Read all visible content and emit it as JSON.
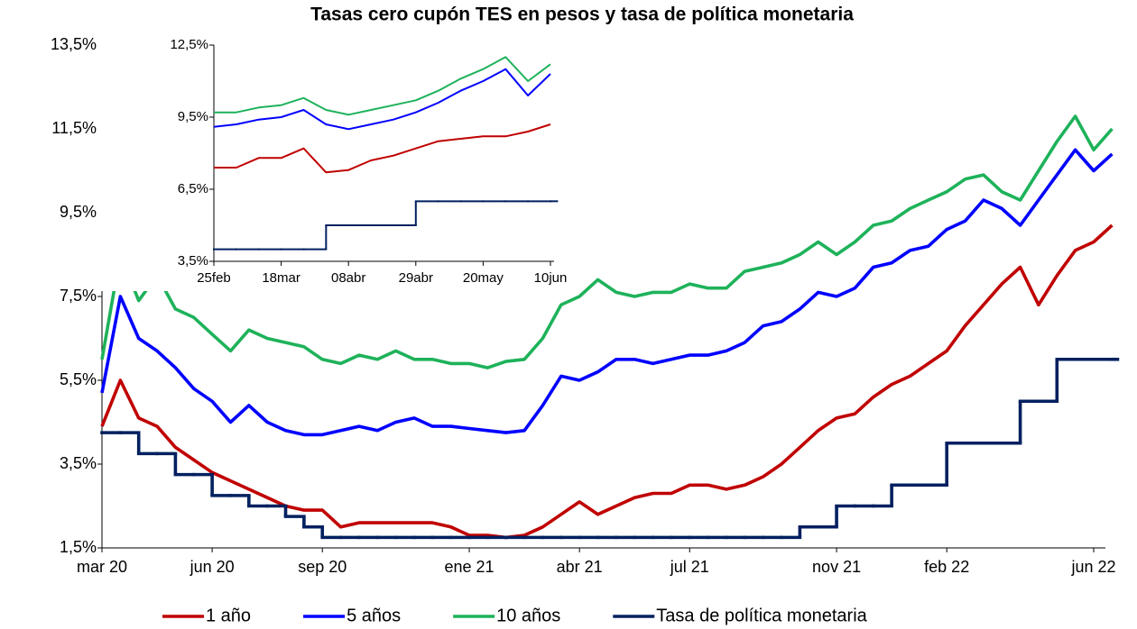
{
  "chart_data": [
    {
      "type": "line",
      "title": "Tasas cero cupón TES en pesos y tasa de política monetaria",
      "categories": [
        "mar 20",
        null,
        null,
        null,
        null,
        null,
        "jun 20",
        null,
        null,
        null,
        null,
        null,
        "sep 20",
        null,
        null,
        null,
        null,
        null,
        null,
        null,
        "ene 21",
        null,
        null,
        null,
        null,
        null,
        "abr 21",
        null,
        null,
        null,
        null,
        null,
        "jul 21",
        null,
        null,
        null,
        null,
        null,
        null,
        null,
        "nov 21",
        null,
        null,
        null,
        null,
        null,
        "feb 22",
        null,
        null,
        null,
        null,
        null,
        null,
        null,
        "jun 22",
        null
      ],
      "ylim": [
        1.5,
        13.5
      ],
      "yticks": [
        {
          "value": 1.5,
          "label": "1,5%"
        },
        {
          "value": 3.5,
          "label": "3,5%"
        },
        {
          "value": 5.5,
          "label": "5,5%"
        },
        {
          "value": 7.5,
          "label": "7,5%"
        },
        {
          "value": 9.5,
          "label": "9,5%"
        },
        {
          "value": 11.5,
          "label": "11,5%"
        },
        {
          "value": 13.5,
          "label": "13,5%"
        }
      ],
      "grid": false,
      "legend": "bottom",
      "series": [
        {
          "name": "1 año",
          "color": "#c00000",
          "values": [
            4.4,
            5.5,
            4.6,
            4.4,
            3.9,
            3.6,
            3.3,
            3.1,
            2.9,
            2.7,
            2.5,
            2.4,
            2.4,
            2.0,
            2.1,
            2.1,
            2.1,
            2.1,
            2.1,
            2.0,
            1.8,
            1.8,
            1.75,
            1.8,
            2.0,
            2.3,
            2.6,
            2.3,
            2.5,
            2.7,
            2.8,
            2.8,
            3.0,
            3.0,
            2.9,
            3.0,
            3.2,
            3.5,
            3.9,
            4.3,
            4.6,
            4.7,
            5.1,
            5.4,
            5.6,
            5.9,
            6.2,
            6.8,
            7.3,
            7.8,
            8.2,
            7.3,
            8.0,
            8.6,
            8.8,
            9.2
          ]
        },
        {
          "name": "5 años",
          "color": "#0000ff",
          "values": [
            5.2,
            7.5,
            6.5,
            6.2,
            5.8,
            5.3,
            5.0,
            4.5,
            4.9,
            4.5,
            4.3,
            4.2,
            4.2,
            4.3,
            4.4,
            4.3,
            4.5,
            4.6,
            4.4,
            4.4,
            4.35,
            4.3,
            4.25,
            4.3,
            4.9,
            5.6,
            5.5,
            5.7,
            6.0,
            6.0,
            5.9,
            6.0,
            6.1,
            6.1,
            6.2,
            6.4,
            6.8,
            6.9,
            7.2,
            7.6,
            7.5,
            7.7,
            8.2,
            8.3,
            8.6,
            8.7,
            9.1,
            9.3,
            9.8,
            9.6,
            9.2,
            9.8,
            10.4,
            11.0,
            10.5,
            10.9
          ]
        },
        {
          "name": "10 años",
          "color": "#1eb25a",
          "values": [
            6.0,
            8.5,
            7.4,
            8.0,
            7.2,
            7.0,
            6.6,
            6.2,
            6.7,
            6.5,
            6.4,
            6.3,
            6.0,
            5.9,
            6.1,
            6.0,
            6.2,
            6.0,
            6.0,
            5.9,
            5.9,
            5.8,
            5.95,
            6.0,
            6.5,
            7.3,
            7.5,
            7.9,
            7.6,
            7.5,
            7.6,
            7.6,
            7.8,
            7.7,
            7.7,
            8.1,
            8.2,
            8.3,
            8.5,
            8.8,
            8.5,
            8.8,
            9.2,
            9.3,
            9.6,
            9.8,
            10.0,
            10.3,
            10.4,
            10.0,
            9.8,
            10.5,
            11.2,
            11.8,
            11.0,
            11.5
          ]
        },
        {
          "name": "Tasa de política monetaria",
          "color": "#002060",
          "step": true,
          "values": [
            4.25,
            4.25,
            3.75,
            3.75,
            3.25,
            3.25,
            2.75,
            2.75,
            2.5,
            2.5,
            2.25,
            2.0,
            1.75,
            1.75,
            1.75,
            1.75,
            1.75,
            1.75,
            1.75,
            1.75,
            1.75,
            1.75,
            1.75,
            1.75,
            1.75,
            1.75,
            1.75,
            1.75,
            1.75,
            1.75,
            1.75,
            1.75,
            1.75,
            1.75,
            1.75,
            1.75,
            1.75,
            1.75,
            2.0,
            2.0,
            2.5,
            2.5,
            2.5,
            3.0,
            3.0,
            3.0,
            4.0,
            4.0,
            4.0,
            4.0,
            5.0,
            5.0,
            6.0,
            6.0,
            6.0,
            6.0
          ]
        }
      ]
    },
    {
      "type": "line",
      "categories": [
        "25feb",
        null,
        null,
        "18mar",
        null,
        null,
        "08abr",
        null,
        null,
        "29abr",
        null,
        null,
        "20may",
        null,
        null,
        "10jun"
      ],
      "ylim": [
        3.5,
        12.5
      ],
      "yticks": [
        {
          "value": 3.5,
          "label": "3,5%"
        },
        {
          "value": 6.5,
          "label": "6,5%"
        },
        {
          "value": 9.5,
          "label": "9,5%"
        },
        {
          "value": 12.5,
          "label": "12,5%"
        }
      ],
      "grid": false,
      "series": [
        {
          "color": "#c00000",
          "values": [
            7.4,
            7.4,
            7.8,
            7.8,
            8.2,
            7.2,
            7.3,
            7.7,
            7.9,
            8.2,
            8.5,
            8.6,
            8.7,
            8.7,
            8.9,
            9.2
          ]
        },
        {
          "color": "#0000ff",
          "values": [
            9.1,
            9.2,
            9.4,
            9.5,
            9.8,
            9.2,
            9.0,
            9.2,
            9.4,
            9.7,
            10.1,
            10.6,
            11.0,
            11.5,
            10.4,
            11.3
          ]
        },
        {
          "color": "#1eb25a",
          "values": [
            9.7,
            9.7,
            9.9,
            10.0,
            10.3,
            9.8,
            9.6,
            9.8,
            10.0,
            10.2,
            10.6,
            11.1,
            11.5,
            12.0,
            11.0,
            11.7
          ]
        },
        {
          "color": "#002060",
          "step": true,
          "values": [
            4.0,
            4.0,
            4.0,
            4.0,
            4.0,
            5.0,
            5.0,
            5.0,
            5.0,
            6.0,
            6.0,
            6.0,
            6.0,
            6.0,
            6.0,
            6.0
          ]
        }
      ]
    }
  ]
}
